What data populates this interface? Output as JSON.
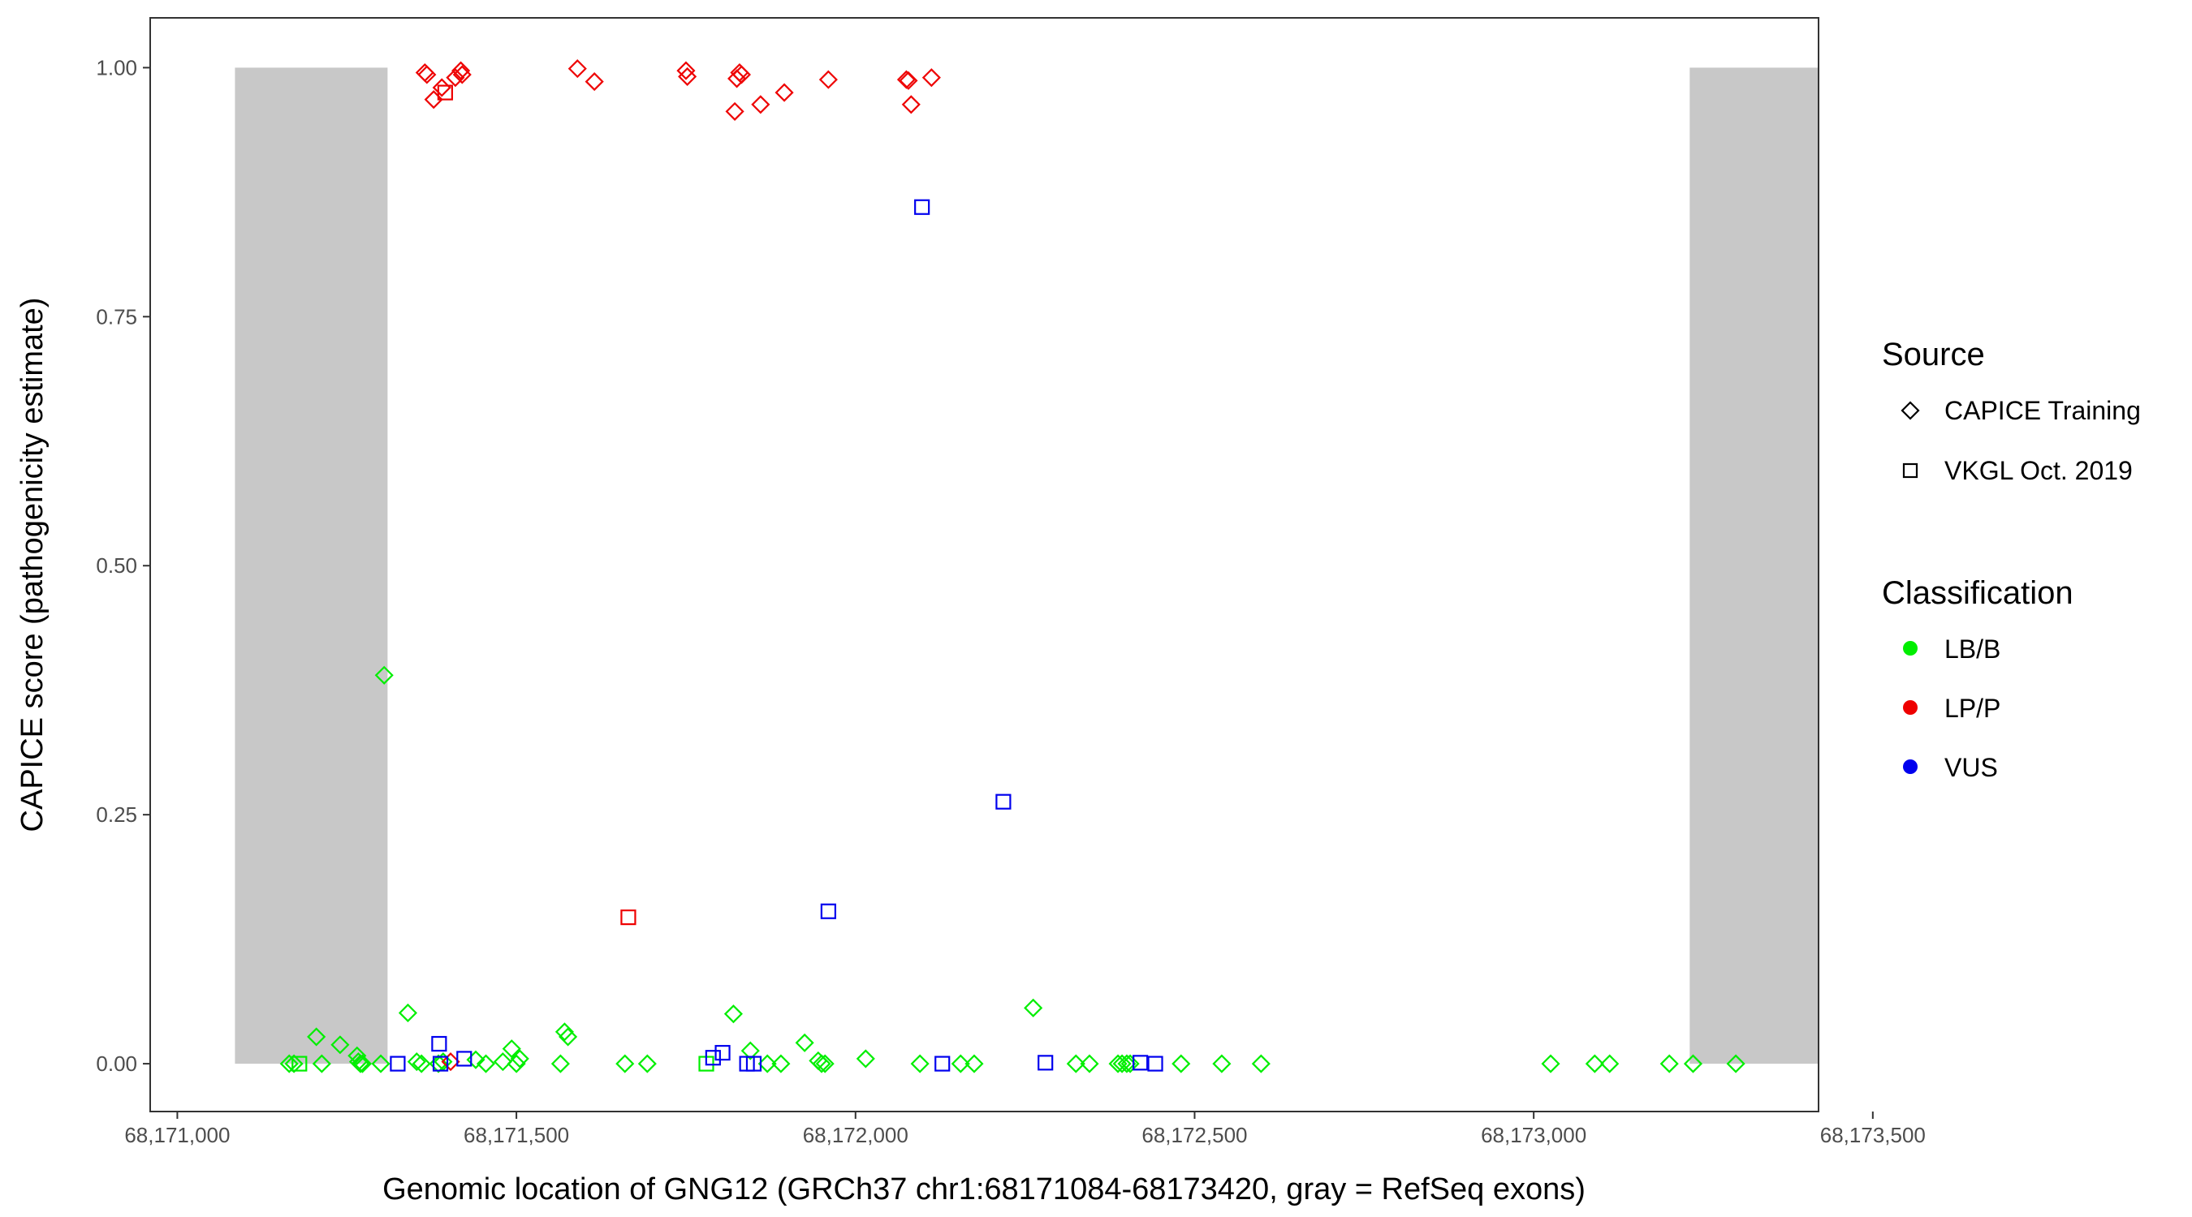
{
  "chart_data": {
    "type": "scatter",
    "xlabel": "Genomic location of GNG12 (GRCh37 chr1:68171084-68173420, gray = RefSeq exons)",
    "ylabel": "CAPICE score (pathogenicity estimate)",
    "xlim": [
      68170960,
      68173420
    ],
    "ylim": [
      -0.048,
      1.05
    ],
    "x_ticks": [
      68171000,
      68171500,
      68172000,
      68172500,
      68173000,
      68173500
    ],
    "x_tick_labels": [
      "68,171,000",
      "68,171,500",
      "68,172,000",
      "68,172,500",
      "68,173,000",
      "68,173,500"
    ],
    "y_ticks": [
      0,
      0.25,
      0.5,
      0.75,
      1.0
    ],
    "y_tick_labels": [
      "0.00",
      "0.25",
      "0.50",
      "0.75",
      "1.00"
    ],
    "grid": false,
    "exons": [
      {
        "start": 68171085,
        "end": 68171310,
        "color": "#c8c8c8"
      },
      {
        "start": 68173230,
        "end": 68173420,
        "color": "#c8c8c8"
      }
    ],
    "legend": {
      "placement": "right",
      "source": {
        "title": "Source",
        "items": [
          {
            "label": "CAPICE Training",
            "shape": "diamond"
          },
          {
            "label": "VKGL Oct. 2019",
            "shape": "square"
          }
        ]
      },
      "classification": {
        "title": "Classification",
        "items": [
          {
            "label": "LB/B",
            "color": "#00ee00"
          },
          {
            "label": "LP/P",
            "color": "#ee0000"
          },
          {
            "label": "VUS",
            "color": "#0000ee"
          }
        ]
      }
    },
    "series": [
      {
        "name": "LB/B",
        "color": "#00ee00",
        "points": [
          {
            "x": 68171165,
            "y": 0.0,
            "shape": "diamond"
          },
          {
            "x": 68171172,
            "y": 0.0,
            "shape": "diamond"
          },
          {
            "x": 68171180,
            "y": 0.0,
            "shape": "square"
          },
          {
            "x": 68171205,
            "y": 0.027,
            "shape": "diamond"
          },
          {
            "x": 68171213,
            "y": 0.0,
            "shape": "diamond"
          },
          {
            "x": 68171240,
            "y": 0.019,
            "shape": "diamond"
          },
          {
            "x": 68171265,
            "y": 0.008,
            "shape": "diamond"
          },
          {
            "x": 68171267,
            "y": 0.002,
            "shape": "diamond"
          },
          {
            "x": 68171270,
            "y": 0.0,
            "shape": "diamond"
          },
          {
            "x": 68171273,
            "y": 0.0,
            "shape": "diamond"
          },
          {
            "x": 68171300,
            "y": 0.0,
            "shape": "diamond"
          },
          {
            "x": 68171305,
            "y": 0.39,
            "shape": "diamond"
          },
          {
            "x": 68171340,
            "y": 0.051,
            "shape": "diamond"
          },
          {
            "x": 68171353,
            "y": 0.002,
            "shape": "diamond"
          },
          {
            "x": 68171360,
            "y": 0.0,
            "shape": "diamond"
          },
          {
            "x": 68171385,
            "y": 0.0,
            "shape": "diamond"
          },
          {
            "x": 68171392,
            "y": 0.002,
            "shape": "diamond"
          },
          {
            "x": 68171440,
            "y": 0.004,
            "shape": "diamond"
          },
          {
            "x": 68171455,
            "y": 0.0,
            "shape": "diamond"
          },
          {
            "x": 68171480,
            "y": 0.002,
            "shape": "diamond"
          },
          {
            "x": 68171493,
            "y": 0.015,
            "shape": "diamond"
          },
          {
            "x": 68171500,
            "y": 0.0,
            "shape": "diamond"
          },
          {
            "x": 68171505,
            "y": 0.005,
            "shape": "diamond"
          },
          {
            "x": 68171565,
            "y": 0.0,
            "shape": "diamond"
          },
          {
            "x": 68171571,
            "y": 0.032,
            "shape": "diamond"
          },
          {
            "x": 68171576,
            "y": 0.027,
            "shape": "diamond"
          },
          {
            "x": 68171660,
            "y": 0.0,
            "shape": "diamond"
          },
          {
            "x": 68171693,
            "y": 0.0,
            "shape": "diamond"
          },
          {
            "x": 68171780,
            "y": 0.0,
            "shape": "square"
          },
          {
            "x": 68171820,
            "y": 0.05,
            "shape": "diamond"
          },
          {
            "x": 68171845,
            "y": 0.013,
            "shape": "diamond"
          },
          {
            "x": 68171870,
            "y": 0.0,
            "shape": "diamond"
          },
          {
            "x": 68171890,
            "y": 0.0,
            "shape": "diamond"
          },
          {
            "x": 68171925,
            "y": 0.021,
            "shape": "diamond"
          },
          {
            "x": 68171945,
            "y": 0.003,
            "shape": "diamond"
          },
          {
            "x": 68171950,
            "y": 0.0,
            "shape": "diamond"
          },
          {
            "x": 68171955,
            "y": 0.0,
            "shape": "diamond"
          },
          {
            "x": 68172015,
            "y": 0.005,
            "shape": "diamond"
          },
          {
            "x": 68172095,
            "y": 0.0,
            "shape": "diamond"
          },
          {
            "x": 68172155,
            "y": 0.0,
            "shape": "diamond"
          },
          {
            "x": 68172175,
            "y": 0.0,
            "shape": "diamond"
          },
          {
            "x": 68172262,
            "y": 0.056,
            "shape": "diamond"
          },
          {
            "x": 68172325,
            "y": 0.0,
            "shape": "diamond"
          },
          {
            "x": 68172345,
            "y": 0.0,
            "shape": "diamond"
          },
          {
            "x": 68172387,
            "y": 0.0,
            "shape": "diamond"
          },
          {
            "x": 68172393,
            "y": 0.0,
            "shape": "diamond"
          },
          {
            "x": 68172400,
            "y": 0.0,
            "shape": "diamond"
          },
          {
            "x": 68172405,
            "y": 0.0,
            "shape": "diamond"
          },
          {
            "x": 68172480,
            "y": 0.0,
            "shape": "diamond"
          },
          {
            "x": 68172540,
            "y": 0.0,
            "shape": "diamond"
          },
          {
            "x": 68172598,
            "y": 0.0,
            "shape": "diamond"
          },
          {
            "x": 68173025,
            "y": 0.0,
            "shape": "diamond"
          },
          {
            "x": 68173090,
            "y": 0.0,
            "shape": "diamond"
          },
          {
            "x": 68173112,
            "y": 0.0,
            "shape": "diamond"
          },
          {
            "x": 68173200,
            "y": 0.0,
            "shape": "diamond"
          },
          {
            "x": 68173235,
            "y": 0.0,
            "shape": "diamond"
          },
          {
            "x": 68173298,
            "y": 0.0,
            "shape": "diamond"
          }
        ]
      },
      {
        "name": "LP/P",
        "color": "#ee0000",
        "points": [
          {
            "x": 68171365,
            "y": 0.995,
            "shape": "diamond"
          },
          {
            "x": 68171368,
            "y": 0.993,
            "shape": "diamond"
          },
          {
            "x": 68171378,
            "y": 0.968,
            "shape": "diamond"
          },
          {
            "x": 68171390,
            "y": 0.98,
            "shape": "diamond"
          },
          {
            "x": 68171395,
            "y": 0.975,
            "shape": "square"
          },
          {
            "x": 68171403,
            "y": 0.002,
            "shape": "diamond"
          },
          {
            "x": 68171410,
            "y": 0.99,
            "shape": "diamond"
          },
          {
            "x": 68171418,
            "y": 0.997,
            "shape": "diamond"
          },
          {
            "x": 68171420,
            "y": 0.993,
            "shape": "diamond"
          },
          {
            "x": 68171590,
            "y": 0.999,
            "shape": "diamond"
          },
          {
            "x": 68171615,
            "y": 0.986,
            "shape": "diamond"
          },
          {
            "x": 68171665,
            "y": 0.147,
            "shape": "square"
          },
          {
            "x": 68171750,
            "y": 0.997,
            "shape": "diamond"
          },
          {
            "x": 68171752,
            "y": 0.991,
            "shape": "diamond"
          },
          {
            "x": 68171822,
            "y": 0.956,
            "shape": "diamond"
          },
          {
            "x": 68171825,
            "y": 0.989,
            "shape": "diamond"
          },
          {
            "x": 68171829,
            "y": 0.995,
            "shape": "diamond"
          },
          {
            "x": 68171832,
            "y": 0.993,
            "shape": "diamond"
          },
          {
            "x": 68171860,
            "y": 0.963,
            "shape": "diamond"
          },
          {
            "x": 68171895,
            "y": 0.975,
            "shape": "diamond"
          },
          {
            "x": 68171960,
            "y": 0.988,
            "shape": "diamond"
          },
          {
            "x": 68172075,
            "y": 0.988,
            "shape": "diamond"
          },
          {
            "x": 68172078,
            "y": 0.987,
            "shape": "diamond"
          },
          {
            "x": 68172082,
            "y": 0.963,
            "shape": "diamond"
          },
          {
            "x": 68172112,
            "y": 0.99,
            "shape": "diamond"
          }
        ]
      },
      {
        "name": "VUS",
        "color": "#0000ee",
        "points": [
          {
            "x": 68171325,
            "y": 0.0,
            "shape": "square"
          },
          {
            "x": 68171386,
            "y": 0.02,
            "shape": "square"
          },
          {
            "x": 68171388,
            "y": 0.0,
            "shape": "square"
          },
          {
            "x": 68171423,
            "y": 0.005,
            "shape": "square"
          },
          {
            "x": 68171790,
            "y": 0.006,
            "shape": "square"
          },
          {
            "x": 68171804,
            "y": 0.011,
            "shape": "square"
          },
          {
            "x": 68171840,
            "y": 0.0,
            "shape": "square"
          },
          {
            "x": 68171850,
            "y": 0.0,
            "shape": "square"
          },
          {
            "x": 68171960,
            "y": 0.153,
            "shape": "square"
          },
          {
            "x": 68172098,
            "y": 0.86,
            "shape": "square"
          },
          {
            "x": 68172128,
            "y": 0.0,
            "shape": "square"
          },
          {
            "x": 68172218,
            "y": 0.263,
            "shape": "square"
          },
          {
            "x": 68172280,
            "y": 0.001,
            "shape": "square"
          },
          {
            "x": 68172420,
            "y": 0.001,
            "shape": "square"
          },
          {
            "x": 68172442,
            "y": 0.0,
            "shape": "square"
          }
        ]
      }
    ]
  }
}
